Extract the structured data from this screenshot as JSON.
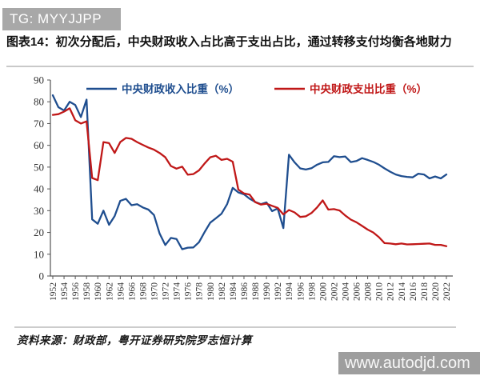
{
  "watermark_top": {
    "text": "TG: MYYJJPP",
    "bg": "#a8a8a8",
    "fg": "#ffffff"
  },
  "title": "图表14：初次分配后，中央财政收入占比高于支出占比，通过转移支付均衡各地财力",
  "source_note": "资料来源：财政部，粤开证券研究院罗志恒计算",
  "watermark_bottom": {
    "text": "www.autodjd.com",
    "bg": "#9e9e9e",
    "fg": "#f7f7f7"
  },
  "colors": {
    "revenue_line": "#1f4e8f",
    "expenditure_line": "#c01818",
    "axis": "#555555",
    "tick_text": "#333333"
  },
  "chart_data": {
    "type": "line",
    "title": "",
    "xlabel": "",
    "ylabel": "",
    "ylim": [
      0,
      90
    ],
    "ytick_step": 10,
    "xtick_step": 2,
    "grid": false,
    "legend_position": "top",
    "x": [
      1952,
      1953,
      1954,
      1955,
      1956,
      1957,
      1958,
      1959,
      1960,
      1961,
      1962,
      1963,
      1964,
      1965,
      1966,
      1967,
      1968,
      1969,
      1970,
      1971,
      1972,
      1973,
      1974,
      1975,
      1976,
      1977,
      1978,
      1979,
      1980,
      1981,
      1982,
      1983,
      1984,
      1985,
      1986,
      1987,
      1988,
      1989,
      1990,
      1991,
      1992,
      1993,
      1994,
      1995,
      1996,
      1997,
      1998,
      1999,
      2000,
      2001,
      2002,
      2003,
      2004,
      2005,
      2006,
      2007,
      2008,
      2009,
      2010,
      2011,
      2012,
      2013,
      2014,
      2015,
      2016,
      2017,
      2018,
      2019,
      2020,
      2021,
      2022
    ],
    "series": [
      {
        "name": "中央财政收入比重（%）",
        "color": "#1f4e8f",
        "values": [
          83.0,
          77.5,
          76.0,
          80.0,
          78.5,
          73.0,
          81.0,
          26.0,
          24.0,
          30.0,
          23.5,
          27.5,
          34.5,
          35.4,
          32.5,
          33.0,
          31.5,
          30.5,
          28.0,
          19.5,
          14.2,
          17.5,
          17.0,
          12.3,
          13.0,
          13.1,
          15.5,
          20.2,
          24.5,
          26.5,
          28.6,
          33.0,
          40.5,
          38.4,
          37.5,
          35.5,
          34.0,
          33.0,
          33.8,
          29.8,
          31.0,
          22.0,
          55.7,
          52.2,
          49.4,
          48.9,
          49.5,
          51.1,
          52.2,
          52.4,
          55.0,
          54.6,
          54.9,
          52.3,
          52.8,
          54.1,
          53.3,
          52.4,
          51.1,
          49.4,
          47.9,
          46.6,
          45.9,
          45.5,
          45.3,
          47.0,
          46.6,
          44.8,
          45.7,
          44.8,
          46.6
        ]
      },
      {
        "name": "中央财政支出比重（%）",
        "color": "#c01818",
        "values": [
          74.0,
          74.3,
          75.5,
          77.0,
          71.5,
          70.0,
          71.0,
          45.0,
          44.0,
          61.5,
          61.0,
          56.5,
          61.5,
          63.4,
          63.0,
          61.5,
          60.2,
          59.0,
          58.0,
          56.5,
          54.5,
          50.5,
          49.3,
          50.2,
          46.5,
          46.8,
          48.5,
          51.7,
          54.5,
          55.2,
          53.3,
          53.8,
          52.5,
          39.7,
          37.9,
          37.4,
          33.9,
          32.8,
          33.2,
          32.2,
          31.3,
          28.3,
          30.3,
          29.2,
          27.1,
          27.4,
          28.9,
          31.5,
          34.7,
          30.5,
          30.7,
          30.1,
          27.8,
          25.9,
          24.7,
          23.0,
          21.3,
          20.0,
          17.8,
          15.1,
          14.9,
          14.6,
          14.9,
          14.5,
          14.6,
          14.7,
          14.8,
          14.9,
          14.3,
          14.3,
          13.7
        ]
      }
    ]
  }
}
